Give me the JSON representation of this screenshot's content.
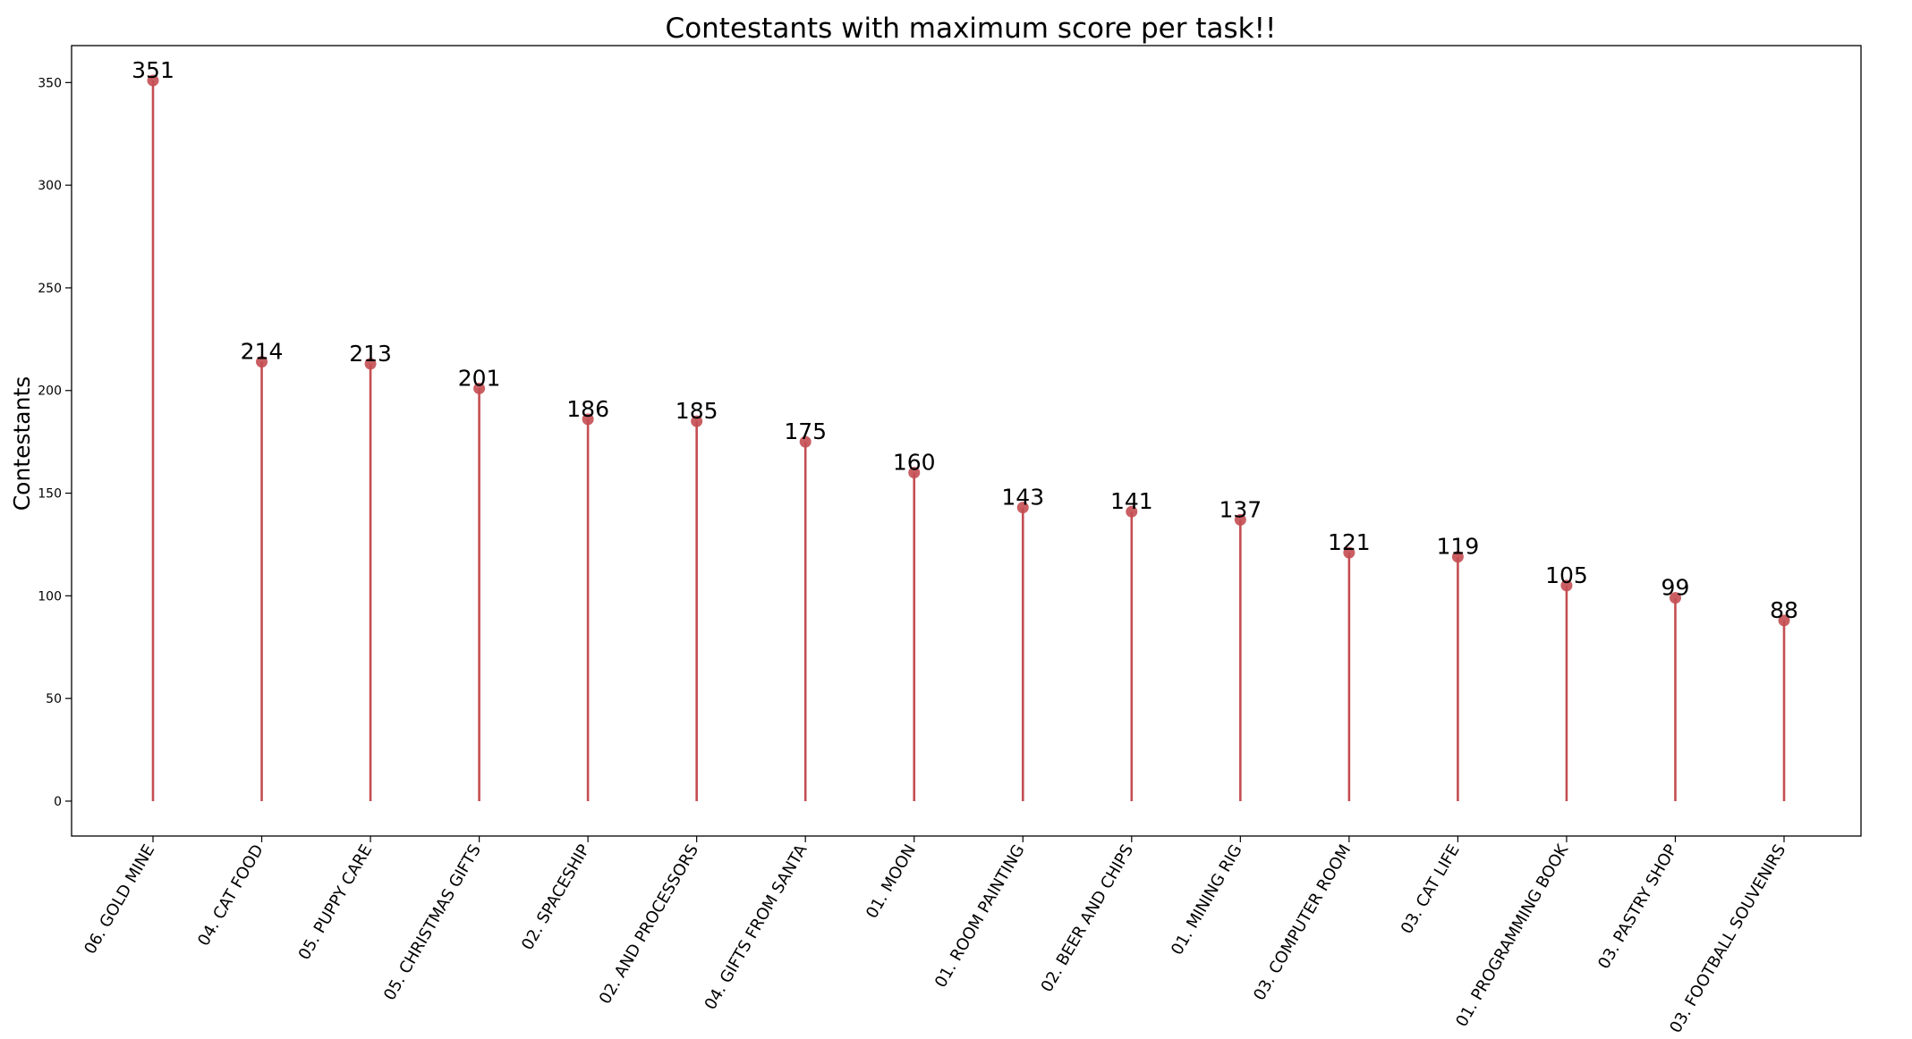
{
  "chart_data": {
    "type": "lollipop",
    "title": "Contestants with maximum score per task!!",
    "xlabel": "",
    "ylabel": "Contestants",
    "ylim": [
      -17,
      368
    ],
    "yticks": [
      0,
      50,
      100,
      150,
      200,
      250,
      300,
      350
    ],
    "grid": false,
    "legend": "none",
    "colors": {
      "stem": "#c44e52",
      "marker": "#c44e52",
      "frame": "#000000"
    },
    "categories": [
      "06. GOLD MINE",
      "04. CAT FOOD",
      "05. PUPPY CARE",
      "05. CHRISTMAS GIFTS",
      "02. SPACESHIP",
      "02. AND PROCESSORS",
      "04. GIFTS FROM SANTA",
      "01. MOON",
      "01. ROOM PAINTING",
      "02. BEER AND CHIPS",
      "01. MINING RIG",
      "03. COMPUTER ROOM",
      "03. CAT LIFE",
      "01. PROGRAMMING BOOK",
      "03. PASTRY SHOP",
      "03. FOOTBALL SOUVENIRS"
    ],
    "values": [
      351,
      214,
      213,
      201,
      186,
      185,
      175,
      160,
      143,
      141,
      137,
      121,
      119,
      105,
      99,
      88
    ]
  }
}
